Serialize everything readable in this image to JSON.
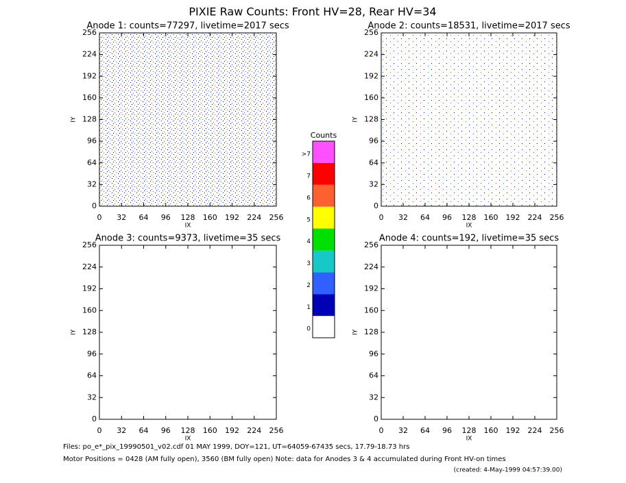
{
  "title": "PIXIE Raw Counts:  Front HV=28, Rear HV=34",
  "chart_data": [
    {
      "type": "heatmap",
      "title": "Anode 1: counts=77297, livetime=2017 secs",
      "xlabel": "IX",
      "ylabel": "IY",
      "xlim": [
        0,
        256
      ],
      "ylim": [
        0,
        256
      ],
      "xticks": [
        0,
        32,
        64,
        96,
        128,
        160,
        192,
        224,
        256
      ],
      "yticks": [
        0,
        32,
        64,
        96,
        128,
        160,
        192,
        224,
        256
      ]
    },
    {
      "type": "heatmap",
      "title": "Anode 2: counts=18531, livetime=2017 secs",
      "xlabel": "IX",
      "ylabel": "IY",
      "xlim": [
        0,
        256
      ],
      "ylim": [
        0,
        256
      ],
      "xticks": [
        0,
        32,
        64,
        96,
        128,
        160,
        192,
        224,
        256
      ],
      "yticks": [
        0,
        32,
        64,
        96,
        128,
        160,
        192,
        224,
        256
      ]
    },
    {
      "type": "heatmap",
      "title": "Anode 3: counts=9373, livetime=35 secs",
      "xlabel": "IX",
      "ylabel": "IY",
      "xlim": [
        0,
        256
      ],
      "ylim": [
        0,
        256
      ],
      "xticks": [
        0,
        32,
        64,
        96,
        128,
        160,
        192,
        224,
        256
      ],
      "yticks": [
        0,
        32,
        64,
        96,
        128,
        160,
        192,
        224,
        256
      ]
    },
    {
      "type": "heatmap",
      "title": "Anode 4: counts=192, livetime=35 secs",
      "xlabel": "IX",
      "ylabel": "IY",
      "xlim": [
        0,
        256
      ],
      "ylim": [
        0,
        256
      ],
      "xticks": [
        0,
        32,
        64,
        96,
        128,
        160,
        192,
        224,
        256
      ],
      "yticks": [
        0,
        32,
        64,
        96,
        128,
        160,
        192,
        224,
        256
      ]
    }
  ],
  "colorbar": {
    "title": "Counts",
    "levels": [
      {
        "label": "0",
        "color": "#ffffff"
      },
      {
        "label": "1",
        "color": "#0000b4"
      },
      {
        "label": "2",
        "color": "#3060ff"
      },
      {
        "label": "3",
        "color": "#18c8c8"
      },
      {
        "label": "4",
        "color": "#00e000"
      },
      {
        "label": "5",
        "color": "#ffff00"
      },
      {
        "label": "6",
        "color": "#ff6030"
      },
      {
        "label": "7",
        "color": "#ff0000"
      },
      {
        "label": ">7",
        "color": "#ff50ff"
      }
    ]
  },
  "footer": {
    "line1": "Files: po_e*_pix_19990501_v02.cdf    01 MAY 1999, DOY=121, UT=64059-67435 secs, 17.79-18.73 hrs",
    "line2": "Motor Positions = 0428 (AM fully open), 3560 (BM fully open)    Note: data for Anodes 3 & 4 accumulated during Front HV-on times",
    "created": "(created:  4-May-1999 04:57:39.00)"
  }
}
